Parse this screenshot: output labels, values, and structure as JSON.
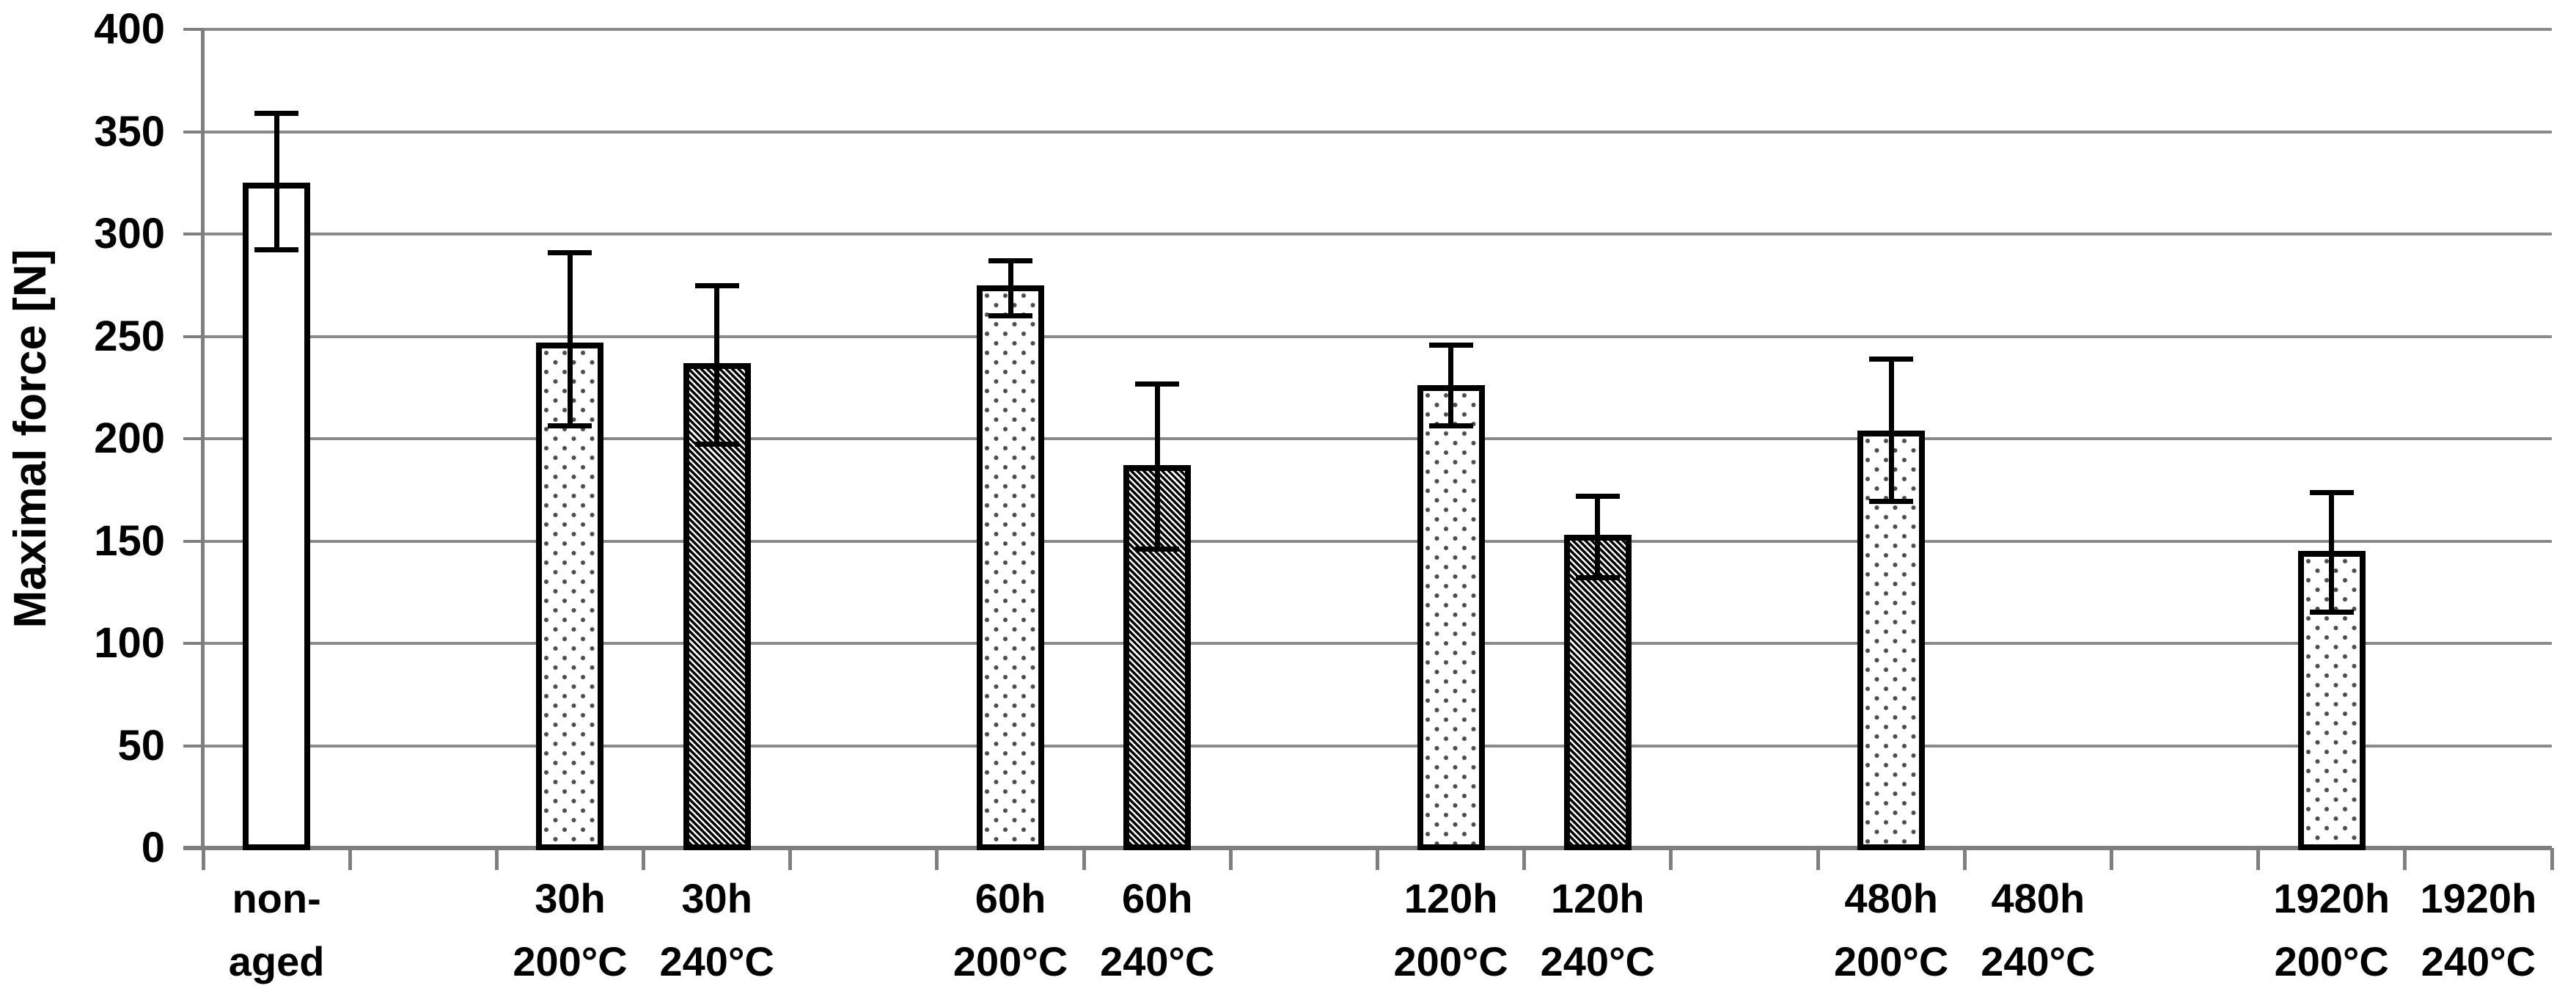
{
  "chart_data": {
    "type": "bar",
    "title": "",
    "xlabel": "",
    "ylabel": "Maximal force [N]",
    "ylim": [
      0,
      400
    ],
    "ytick_step": 50,
    "yticks": [
      0,
      50,
      100,
      150,
      200,
      250,
      300,
      350,
      400
    ],
    "grid": true,
    "legend_position": "none",
    "slot_count": 16,
    "categories": [
      {
        "label": [
          "non-",
          "aged"
        ],
        "slot": 0,
        "value": 325,
        "err_low": 292,
        "err_high": 359,
        "fill": "plain"
      },
      {
        "label": [
          "30h",
          "200°C"
        ],
        "slot": 2,
        "value": 247,
        "err_low": 206,
        "err_high": 291,
        "fill": "dotted"
      },
      {
        "label": [
          "30h",
          "240°C"
        ],
        "slot": 3,
        "value": 237,
        "err_low": 197,
        "err_high": 275,
        "fill": "hatched"
      },
      {
        "label": [
          "60h",
          "200°C"
        ],
        "slot": 5,
        "value": 275,
        "err_low": 260,
        "err_high": 287,
        "fill": "dotted"
      },
      {
        "label": [
          "60h",
          "240°C"
        ],
        "slot": 6,
        "value": 187,
        "err_low": 146,
        "err_high": 227,
        "fill": "hatched"
      },
      {
        "label": [
          "120h",
          "200°C"
        ],
        "slot": 8,
        "value": 226,
        "err_low": 206,
        "err_high": 246,
        "fill": "dotted"
      },
      {
        "label": [
          "120h",
          "240°C"
        ],
        "slot": 9,
        "value": 153,
        "err_low": 132,
        "err_high": 172,
        "fill": "hatched"
      },
      {
        "label": [
          "480h",
          "200°C"
        ],
        "slot": 11,
        "value": 204,
        "err_low": 169,
        "err_high": 239,
        "fill": "dotted"
      },
      {
        "label": [
          "480h",
          "240°C"
        ],
        "slot": 12,
        "value": null,
        "err_low": null,
        "err_high": null,
        "fill": "none"
      },
      {
        "label": [
          "1920h",
          "200°C"
        ],
        "slot": 14,
        "value": 145,
        "err_low": 115,
        "err_high": 174,
        "fill": "dotted"
      },
      {
        "label": [
          "1920h",
          "240°C"
        ],
        "slot": 15,
        "value": null,
        "err_low": null,
        "err_high": null,
        "fill": "none"
      }
    ],
    "colors": {
      "background": "#ffffff",
      "gridline": "#8a8a8a",
      "axis": "#7f7f7f",
      "bar_outline": "#000000",
      "dot_fill": "#4d4d4d",
      "text": "#000000"
    }
  }
}
